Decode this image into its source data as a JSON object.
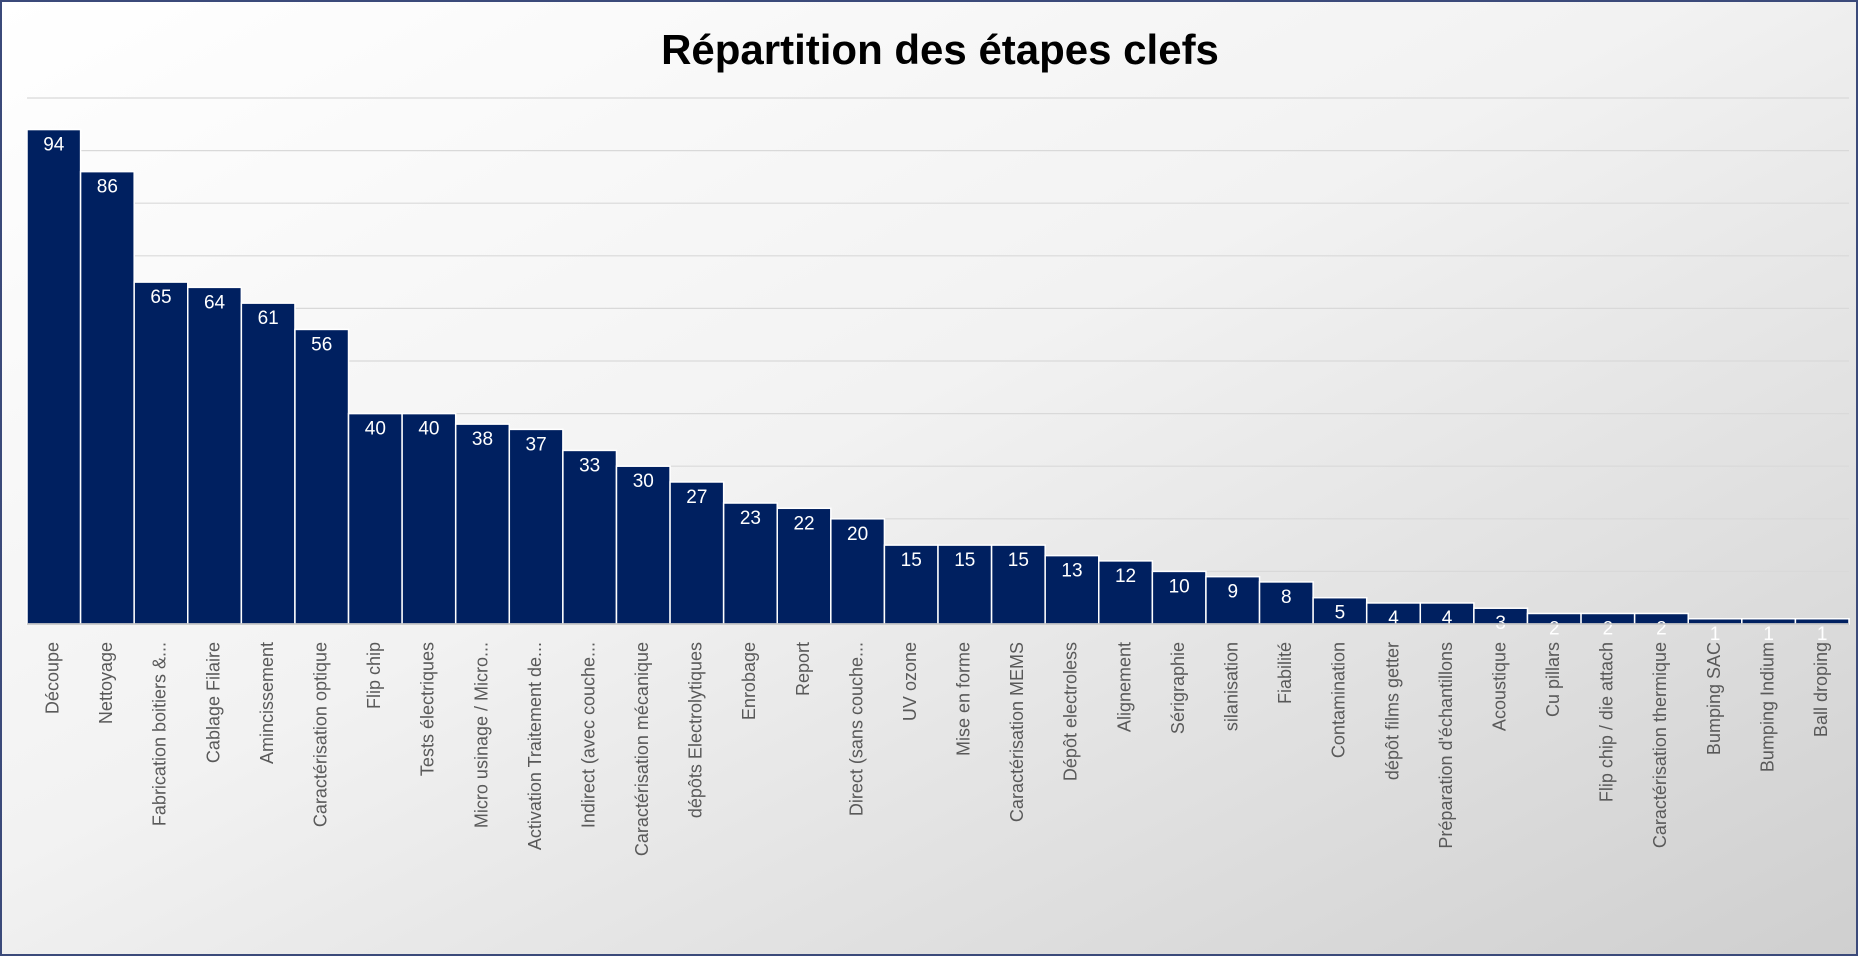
{
  "chart_data": {
    "type": "bar",
    "title": "Répartition des étapes clefs",
    "categories": [
      "Découpe",
      "Nettoyage",
      "Fabrication boitiers &...",
      "Cablage Filaire",
      "Amincissement",
      "Caractérisation optique",
      "Flip chip",
      "Tests électriques",
      "Micro usinage / Micro...",
      "Activation Traitement de...",
      "Indirect (avec couche...",
      "Caractérisation mécanique",
      "dépôts Electrolytiques",
      "Enrobage",
      "Report",
      "Direct (sans couche...",
      "UV ozone",
      "Mise en forme",
      "Caractérisation MEMS",
      "Dépôt electroless",
      "Alignement",
      "Sérigraphie",
      "silanisation",
      "Fiabilité",
      "Contamination",
      "dépôt films getter",
      "Préparation d'échantillons",
      "Acoustique",
      "Cu pillars",
      "Flip chip / die attach",
      "Caractérisation thermique",
      "Bumping SAC",
      "Bumping Indium",
      "Ball droping"
    ],
    "values": [
      94,
      86,
      65,
      64,
      61,
      56,
      40,
      40,
      38,
      37,
      33,
      30,
      27,
      23,
      22,
      20,
      15,
      15,
      15,
      13,
      12,
      10,
      9,
      8,
      5,
      4,
      4,
      3,
      2,
      2,
      2,
      1,
      1,
      1
    ],
    "color": "#002060",
    "ylim": [
      0,
      100
    ],
    "yticks": [
      0,
      10,
      20,
      30,
      40,
      50,
      60,
      70,
      80,
      90,
      100
    ],
    "grid": true,
    "y_tick_labels_shown": false
  }
}
